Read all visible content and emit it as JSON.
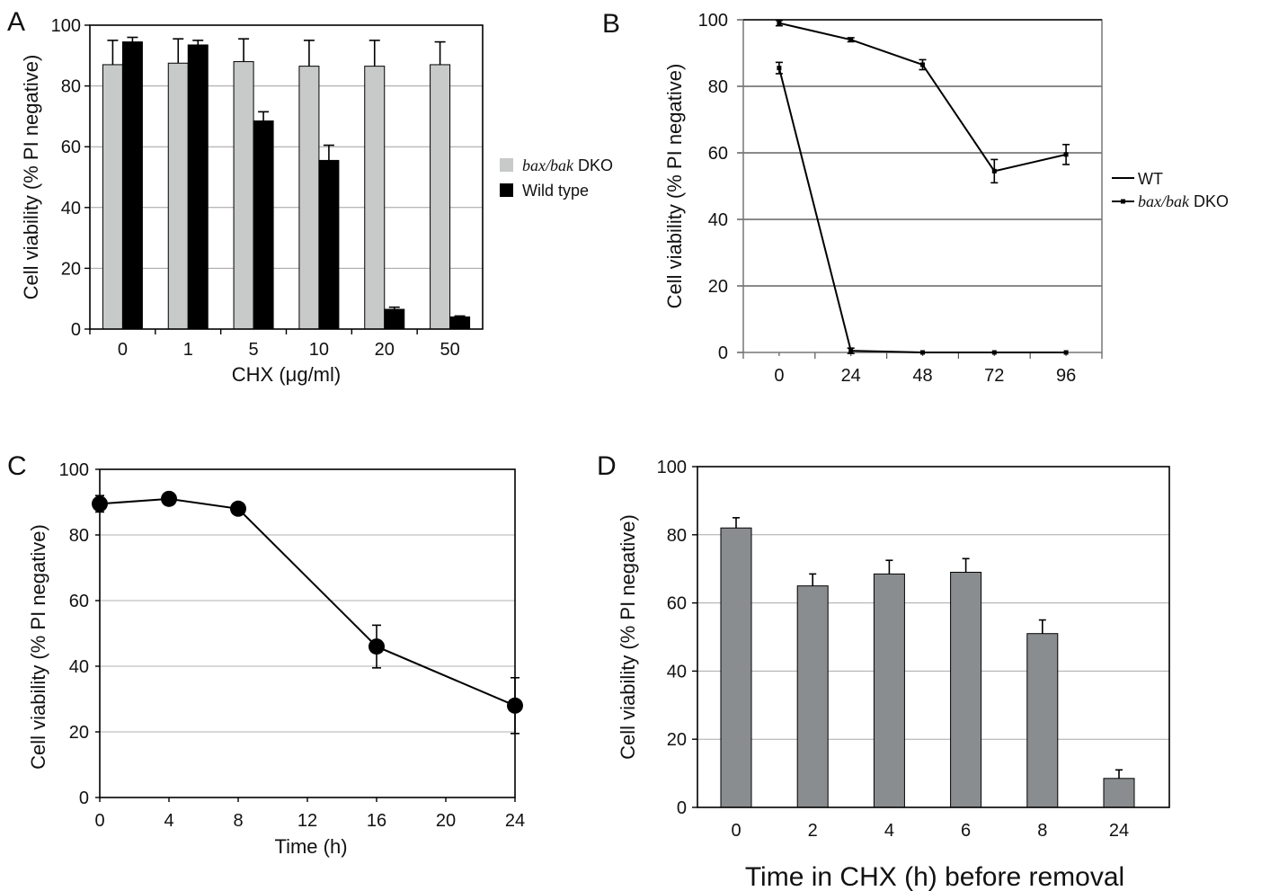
{
  "chart_data": [
    {
      "panel": "A",
      "type": "bar",
      "categories": [
        "0",
        "1",
        "5",
        "10",
        "20",
        "50"
      ],
      "series": [
        {
          "name": "bax/bak DKO",
          "values": [
            87,
            87.5,
            88,
            86.5,
            86.5,
            87
          ],
          "errors": [
            8,
            8,
            7.5,
            8.5,
            8.5,
            7.5
          ],
          "color": "#c8c9c9"
        },
        {
          "name": "Wild type",
          "values": [
            94.5,
            93.5,
            68.5,
            55.5,
            6.5,
            4
          ],
          "errors": [
            1.5,
            1.5,
            3,
            5,
            0.7,
            0.3
          ],
          "color": "#000000"
        }
      ],
      "legend_label_italic": [
        "bax/bak",
        ""
      ],
      "legend_label_suffix": [
        " DKO",
        "Wild type"
      ],
      "xlabel": "CHX (μg/ml)",
      "ylabel": "Cell viability (% PI negative)",
      "ylim": [
        0,
        100
      ],
      "yticks": [
        "0",
        "20",
        "40",
        "60",
        "80",
        "100"
      ],
      "grid": true,
      "legend_position": "right"
    },
    {
      "panel": "B",
      "type": "line",
      "x": [
        "0",
        "24",
        "48",
        "72",
        "96"
      ],
      "series": [
        {
          "name": "WT",
          "values": [
            85.5,
            0.5,
            0,
            0,
            0
          ],
          "errors": [
            1.7,
            0.8,
            0,
            0,
            0
          ]
        },
        {
          "name": "bax/bak DKO",
          "values": [
            99,
            94,
            86.5,
            54.5,
            59.5
          ],
          "errors": [
            0.8,
            0.6,
            1.5,
            3.5,
            3
          ]
        }
      ],
      "legend_label_italic": [
        "",
        "bax/bak"
      ],
      "legend_label_suffix": [
        "WT",
        " DKO"
      ],
      "ylabel": "Cell viability (% PI negative)",
      "ylim": [
        0,
        100
      ],
      "yticks": [
        "0",
        "20",
        "40",
        "60",
        "80",
        "100"
      ],
      "grid": true,
      "legend_position": "right"
    },
    {
      "panel": "C",
      "type": "line",
      "x": [
        0,
        4,
        8,
        16,
        24
      ],
      "values": [
        89.5,
        91,
        88,
        46,
        28
      ],
      "errors": [
        2.5,
        0,
        0,
        6.5,
        8.5
      ],
      "xlabel": "Time (h)",
      "ylabel": "Cell viability (% PI negative)",
      "xlim": [
        0,
        24
      ],
      "xticks": [
        "0",
        "4",
        "8",
        "12",
        "16",
        "20",
        "24"
      ],
      "ylim": [
        0,
        100
      ],
      "yticks": [
        "0",
        "20",
        "40",
        "60",
        "80",
        "100"
      ],
      "grid": true
    },
    {
      "panel": "D",
      "type": "bar",
      "categories": [
        "0",
        "2",
        "4",
        "6",
        "8",
        "24"
      ],
      "values": [
        82,
        65,
        68.5,
        69,
        51,
        8.5
      ],
      "errors": [
        3,
        3.5,
        4,
        4,
        4,
        2.5
      ],
      "color": "#8a8d8f",
      "xlabel": "Time in CHX (h) before removal",
      "ylabel": "Cell viability (% PI negative)",
      "ylim": [
        0,
        100
      ],
      "yticks": [
        "0",
        "20",
        "40",
        "60",
        "80",
        "100"
      ],
      "grid": true
    }
  ]
}
